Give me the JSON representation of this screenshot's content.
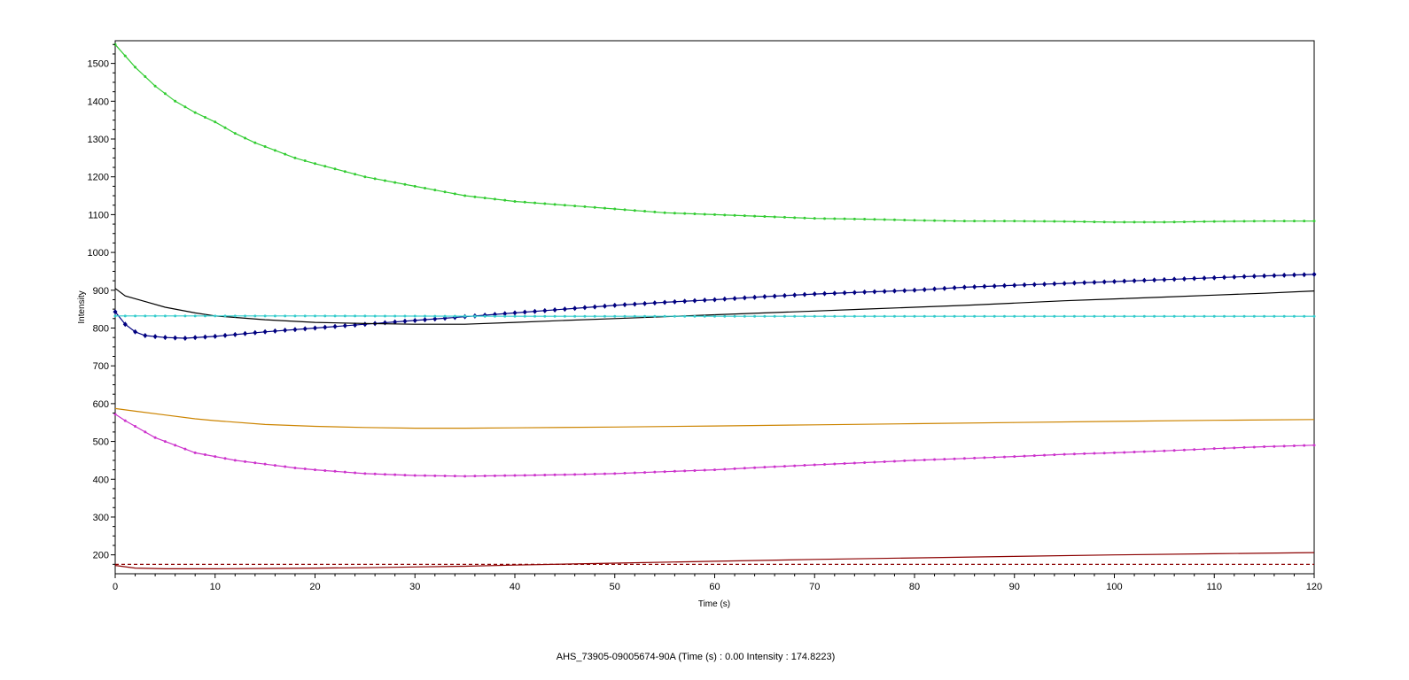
{
  "status_text": "AHS_73905-09005674-90A (Time (s) : 0.00  Intensity : 174.8223)",
  "chart_data": {
    "type": "line",
    "title": "",
    "xlabel": "Time (s)",
    "ylabel": "Intensity",
    "xlim": [
      0,
      120
    ],
    "ylim": [
      150,
      1560
    ],
    "x_ticks": [
      0,
      10,
      20,
      30,
      40,
      50,
      60,
      70,
      80,
      90,
      100,
      110,
      120
    ],
    "y_ticks": [
      200,
      300,
      400,
      500,
      600,
      700,
      800,
      900,
      1000,
      1100,
      1200,
      1300,
      1400,
      1500
    ],
    "grid": false,
    "legend": "none",
    "series": [
      {
        "color": "#33cc33",
        "marker": "small-dot",
        "line_style": "solid",
        "x": [
          0,
          2,
          4,
          6,
          8,
          10,
          12,
          14,
          16,
          18,
          20,
          25,
          30,
          35,
          40,
          45,
          50,
          55,
          60,
          65,
          70,
          75,
          80,
          85,
          90,
          95,
          100,
          105,
          110,
          115,
          120
        ],
        "y": [
          1550,
          1490,
          1440,
          1400,
          1370,
          1345,
          1315,
          1290,
          1270,
          1250,
          1235,
          1200,
          1175,
          1150,
          1135,
          1125,
          1115,
          1105,
          1100,
          1095,
          1090,
          1088,
          1085,
          1083,
          1083,
          1082,
          1080,
          1080,
          1082,
          1083,
          1083
        ]
      },
      {
        "color": "#000080",
        "marker": "diamond",
        "line_style": "solid",
        "x": [
          0,
          1,
          2,
          3,
          5,
          7,
          10,
          15,
          20,
          25,
          30,
          35,
          40,
          45,
          50,
          55,
          60,
          65,
          70,
          75,
          80,
          85,
          90,
          95,
          100,
          105,
          110,
          115,
          120
        ],
        "y": [
          843,
          810,
          790,
          780,
          775,
          773,
          778,
          790,
          800,
          810,
          820,
          830,
          840,
          850,
          860,
          868,
          875,
          883,
          890,
          895,
          900,
          908,
          913,
          918,
          923,
          928,
          933,
          938,
          942
        ]
      },
      {
        "color": "#000000",
        "marker": "none",
        "line_style": "solid",
        "x": [
          0,
          1,
          3,
          5,
          8,
          10,
          15,
          20,
          25,
          30,
          35,
          40,
          45,
          50,
          55,
          60,
          65,
          70,
          75,
          80,
          85,
          90,
          95,
          100,
          105,
          110,
          115,
          120
        ],
        "y": [
          905,
          885,
          870,
          855,
          840,
          832,
          822,
          815,
          812,
          810,
          810,
          815,
          820,
          825,
          830,
          835,
          840,
          845,
          850,
          855,
          860,
          866,
          872,
          877,
          882,
          887,
          892,
          898
        ]
      },
      {
        "color": "#33cccc",
        "marker": "small-dot",
        "line_style": "solid",
        "x": [
          0,
          20,
          40,
          60,
          80,
          100,
          120
        ],
        "y": [
          832,
          832,
          831,
          831,
          831,
          831,
          831
        ]
      },
      {
        "color": "#cc8400",
        "marker": "none",
        "line_style": "solid",
        "x": [
          0,
          2,
          5,
          8,
          10,
          15,
          20,
          25,
          30,
          35,
          40,
          50,
          60,
          70,
          80,
          90,
          100,
          110,
          120
        ],
        "y": [
          587,
          580,
          570,
          560,
          555,
          545,
          540,
          537,
          535,
          535,
          536,
          538,
          541,
          544,
          547,
          550,
          553,
          556,
          558
        ]
      },
      {
        "color": "#cc33cc",
        "marker": "small-dot",
        "line_style": "solid",
        "x": [
          0,
          1,
          2,
          4,
          6,
          8,
          10,
          12,
          15,
          18,
          20,
          25,
          30,
          35,
          40,
          45,
          50,
          55,
          60,
          65,
          70,
          75,
          80,
          85,
          90,
          95,
          100,
          105,
          110,
          115,
          120
        ],
        "y": [
          572,
          555,
          540,
          510,
          490,
          470,
          460,
          450,
          440,
          430,
          425,
          415,
          410,
          408,
          410,
          412,
          415,
          420,
          425,
          432,
          438,
          444,
          450,
          455,
          460,
          466,
          470,
          475,
          481,
          486,
          490
        ]
      },
      {
        "color": "#8b0000",
        "marker": "none",
        "line_style": "solid",
        "x": [
          0,
          2,
          5,
          10,
          15,
          20,
          25,
          30,
          35,
          40,
          50,
          60,
          70,
          80,
          90,
          100,
          110,
          120
        ],
        "y": [
          172,
          165,
          163,
          163,
          164,
          165,
          166,
          168,
          170,
          173,
          178,
          183,
          188,
          192,
          196,
          200,
          203,
          206
        ]
      },
      {
        "color": "#8b0000",
        "marker": "none",
        "line_style": "dashed",
        "x": [
          0,
          120
        ],
        "y": [
          174.8,
          174.8
        ]
      }
    ]
  }
}
